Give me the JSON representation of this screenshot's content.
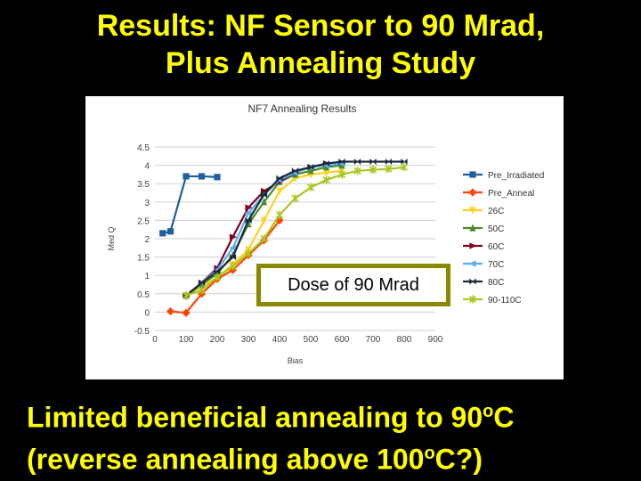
{
  "slide": {
    "title_line1": "Results: NF Sensor to 90 Mrad,",
    "title_line2": "Plus Annealing Study",
    "dose_label": "Dose of 90 Mrad",
    "bottom_line1_a": "Limited beneficial annealing to 90",
    "bottom_line1_sup": "o",
    "bottom_line1_b": "C",
    "bottom_line2_a": "(reverse annealing above 100",
    "bottom_line2_sup": "o",
    "bottom_line2_b": "C?)"
  },
  "chart_data": {
    "type": "line",
    "title": "NF7 Annealing Results",
    "xlabel": "Bias",
    "ylabel": "Med Q",
    "xlim": [
      0,
      900
    ],
    "ylim": [
      -0.5,
      4.5
    ],
    "xticks": [
      "0",
      "100",
      "200",
      "300",
      "400",
      "500",
      "600",
      "700",
      "800",
      "900"
    ],
    "yticks": [
      "-0.5",
      "0",
      "0.5",
      "1",
      "1.5",
      "2",
      "2.5",
      "3",
      "3.5",
      "4",
      "4.5"
    ],
    "grid": "horizontal",
    "legend_position": "right",
    "series": [
      {
        "name": "Pre_Irradiated",
        "color": "#1f5f9f",
        "marker": "square",
        "x": [
          25,
          50,
          100,
          150,
          200
        ],
        "y": [
          2.15,
          2.2,
          3.7,
          3.7,
          3.68
        ]
      },
      {
        "name": "Pre_Anneal",
        "color": "#ff4500",
        "marker": "diamond",
        "x": [
          50,
          100,
          150,
          200,
          250,
          300,
          350,
          400
        ],
        "y": [
          0.02,
          -0.02,
          0.5,
          0.9,
          1.15,
          1.55,
          1.95,
          2.5
        ]
      },
      {
        "name": "26C",
        "color": "#ffd020",
        "marker": "triangle-down",
        "x": [
          100,
          150,
          200,
          250,
          300,
          350,
          400,
          450,
          500,
          550,
          600
        ],
        "y": [
          0.45,
          0.7,
          0.95,
          1.3,
          1.7,
          2.5,
          3.3,
          3.65,
          3.75,
          3.8,
          3.85
        ]
      },
      {
        "name": "50C",
        "color": "#4a8a2a",
        "marker": "triangle",
        "x": [
          100,
          150,
          200,
          250,
          300,
          350,
          400,
          450,
          500,
          550,
          600
        ],
        "y": [
          0.45,
          0.75,
          1.05,
          1.55,
          2.4,
          3.0,
          3.55,
          3.75,
          3.85,
          3.95,
          4.0
        ]
      },
      {
        "name": "60C",
        "color": "#800020",
        "marker": "triangle-right",
        "x": [
          100,
          150,
          200,
          250,
          300,
          350,
          400,
          450,
          500,
          550,
          600
        ],
        "y": [
          0.45,
          0.8,
          1.2,
          2.05,
          2.85,
          3.3,
          3.55,
          3.8,
          3.95,
          4.05,
          4.08
        ]
      },
      {
        "name": "70C",
        "color": "#5ab0f0",
        "marker": "triangle-left",
        "x": [
          100,
          150,
          200,
          250,
          300,
          350,
          400,
          450,
          500,
          550,
          600
        ],
        "y": [
          0.45,
          0.8,
          1.15,
          1.75,
          2.7,
          3.2,
          3.6,
          3.8,
          3.95,
          4.0,
          4.05
        ]
      },
      {
        "name": "80C",
        "color": "#1a2a3a",
        "marker": "bowtie",
        "x": [
          100,
          150,
          200,
          250,
          300,
          350,
          400,
          450,
          500,
          550,
          600,
          650,
          700,
          750,
          800
        ],
        "y": [
          0.45,
          0.8,
          1.1,
          1.5,
          2.5,
          3.2,
          3.65,
          3.85,
          3.95,
          4.05,
          4.1,
          4.1,
          4.1,
          4.1,
          4.1
        ]
      },
      {
        "name": "90-110C",
        "color": "#a8c820",
        "marker": "asterisk",
        "x": [
          100,
          150,
          200,
          250,
          300,
          350,
          400,
          450,
          500,
          550,
          600,
          650,
          700,
          750,
          800
        ],
        "y": [
          0.45,
          0.6,
          0.95,
          1.25,
          1.6,
          2.0,
          2.65,
          3.1,
          3.4,
          3.6,
          3.75,
          3.85,
          3.88,
          3.9,
          3.95
        ]
      }
    ]
  }
}
